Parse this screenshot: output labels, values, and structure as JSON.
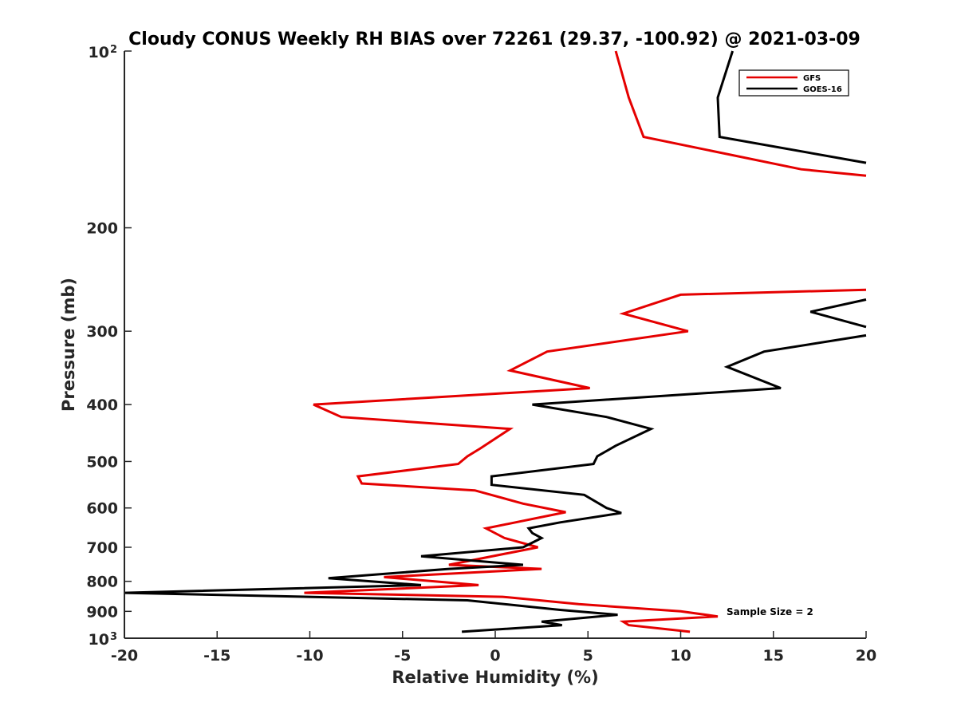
{
  "chart_data": {
    "type": "line",
    "title": "Cloudy CONUS Weekly RH BIAS over 72261 (29.37, -100.92) @ 2021-03-09",
    "xlabel": "Relative Humidity (%)",
    "ylabel": "Pressure (mb)",
    "xlim": [
      -20,
      20
    ],
    "ylim": [
      100,
      1000
    ],
    "yscale": "log",
    "y_reversed": true,
    "xticks": [
      "-20",
      "-15",
      "-10",
      "-5",
      "0",
      "5",
      "10",
      "15",
      "20"
    ],
    "yticks": [
      {
        "value": 100,
        "base": "10",
        "exp": "2"
      },
      {
        "value": 200,
        "label": "200"
      },
      {
        "value": 300,
        "label": "300"
      },
      {
        "value": 400,
        "label": "400"
      },
      {
        "value": 500,
        "label": "500"
      },
      {
        "value": 600,
        "label": "600"
      },
      {
        "value": 700,
        "label": "700"
      },
      {
        "value": 800,
        "label": "800"
      },
      {
        "value": 900,
        "label": "900"
      },
      {
        "value": 1000,
        "base": "10",
        "exp": "3"
      }
    ],
    "legend": {
      "placement": "top-right"
    },
    "annotation": "Sample Size = 2",
    "series": [
      {
        "name": "GFS",
        "color": "#e50000",
        "points": [
          [
            10.5,
            975
          ],
          [
            7.2,
            950
          ],
          [
            6.9,
            937
          ],
          [
            12.0,
            918
          ],
          [
            10.0,
            900
          ],
          [
            4.5,
            875
          ],
          [
            0.4,
            850
          ],
          [
            -10.3,
            837
          ],
          [
            -0.9,
            812
          ],
          [
            -6.0,
            787
          ],
          [
            2.5,
            762
          ],
          [
            -2.5,
            750
          ],
          [
            2.3,
            700
          ],
          [
            0.5,
            675
          ],
          [
            -0.5,
            650
          ],
          [
            1.3,
            633
          ],
          [
            3.8,
            610
          ],
          [
            1.5,
            590
          ],
          [
            -1.1,
            560
          ],
          [
            -7.2,
            545
          ],
          [
            -7.4,
            530
          ],
          [
            -2.0,
            505
          ],
          [
            -1.5,
            490
          ],
          [
            -0.8,
            475
          ],
          [
            0.8,
            440
          ],
          [
            -8.3,
            420
          ],
          [
            -9.8,
            400
          ],
          [
            5.1,
            375
          ],
          [
            0.8,
            350
          ],
          [
            2.8,
            325
          ],
          [
            10.4,
            300
          ],
          [
            6.9,
            280
          ],
          [
            10.0,
            260
          ],
          [
            20,
            255
          ]
        ]
      },
      {
        "name": "GOES-16",
        "color": "#000000",
        "points": [
          [
            -1.8,
            975
          ],
          [
            3.6,
            950
          ],
          [
            2.5,
            937
          ],
          [
            6.6,
            912
          ],
          [
            3.5,
            895
          ],
          [
            -1.5,
            862
          ],
          [
            -20,
            837
          ],
          [
            -4.0,
            812
          ],
          [
            -9.0,
            790
          ],
          [
            -2.5,
            762
          ],
          [
            1.5,
            750
          ],
          [
            -4.0,
            725
          ],
          [
            1.5,
            700
          ],
          [
            2.5,
            675
          ],
          [
            2.0,
            662
          ],
          [
            1.8,
            650
          ],
          [
            3.5,
            635
          ],
          [
            6.8,
            612
          ],
          [
            6.0,
            600
          ],
          [
            4.8,
            570
          ],
          [
            -0.2,
            548
          ],
          [
            -0.2,
            530
          ],
          [
            5.3,
            505
          ],
          [
            5.5,
            490
          ],
          [
            6.5,
            470
          ],
          [
            8.4,
            440
          ],
          [
            6.0,
            420
          ],
          [
            2.0,
            400
          ],
          [
            15.4,
            375
          ],
          [
            12.5,
            345
          ],
          [
            14.5,
            325
          ],
          [
            20,
            305
          ]
        ]
      },
      {
        "name": "GOES-16",
        "color": "#000000",
        "points": [
          [
            20,
            295
          ],
          [
            17.0,
            278
          ],
          [
            20,
            265
          ]
        ]
      },
      {
        "name": "GFS",
        "color": "#e50000",
        "points": [
          [
            20,
            163
          ],
          [
            16.5,
            159
          ],
          [
            8.0,
            140
          ],
          [
            7.2,
            120
          ],
          [
            6.5,
            100
          ]
        ]
      },
      {
        "name": "GOES-16",
        "color": "#000000",
        "points": [
          [
            20,
            155
          ],
          [
            12.1,
            140
          ],
          [
            12.0,
            120
          ],
          [
            12.8,
            100
          ]
        ]
      }
    ]
  }
}
